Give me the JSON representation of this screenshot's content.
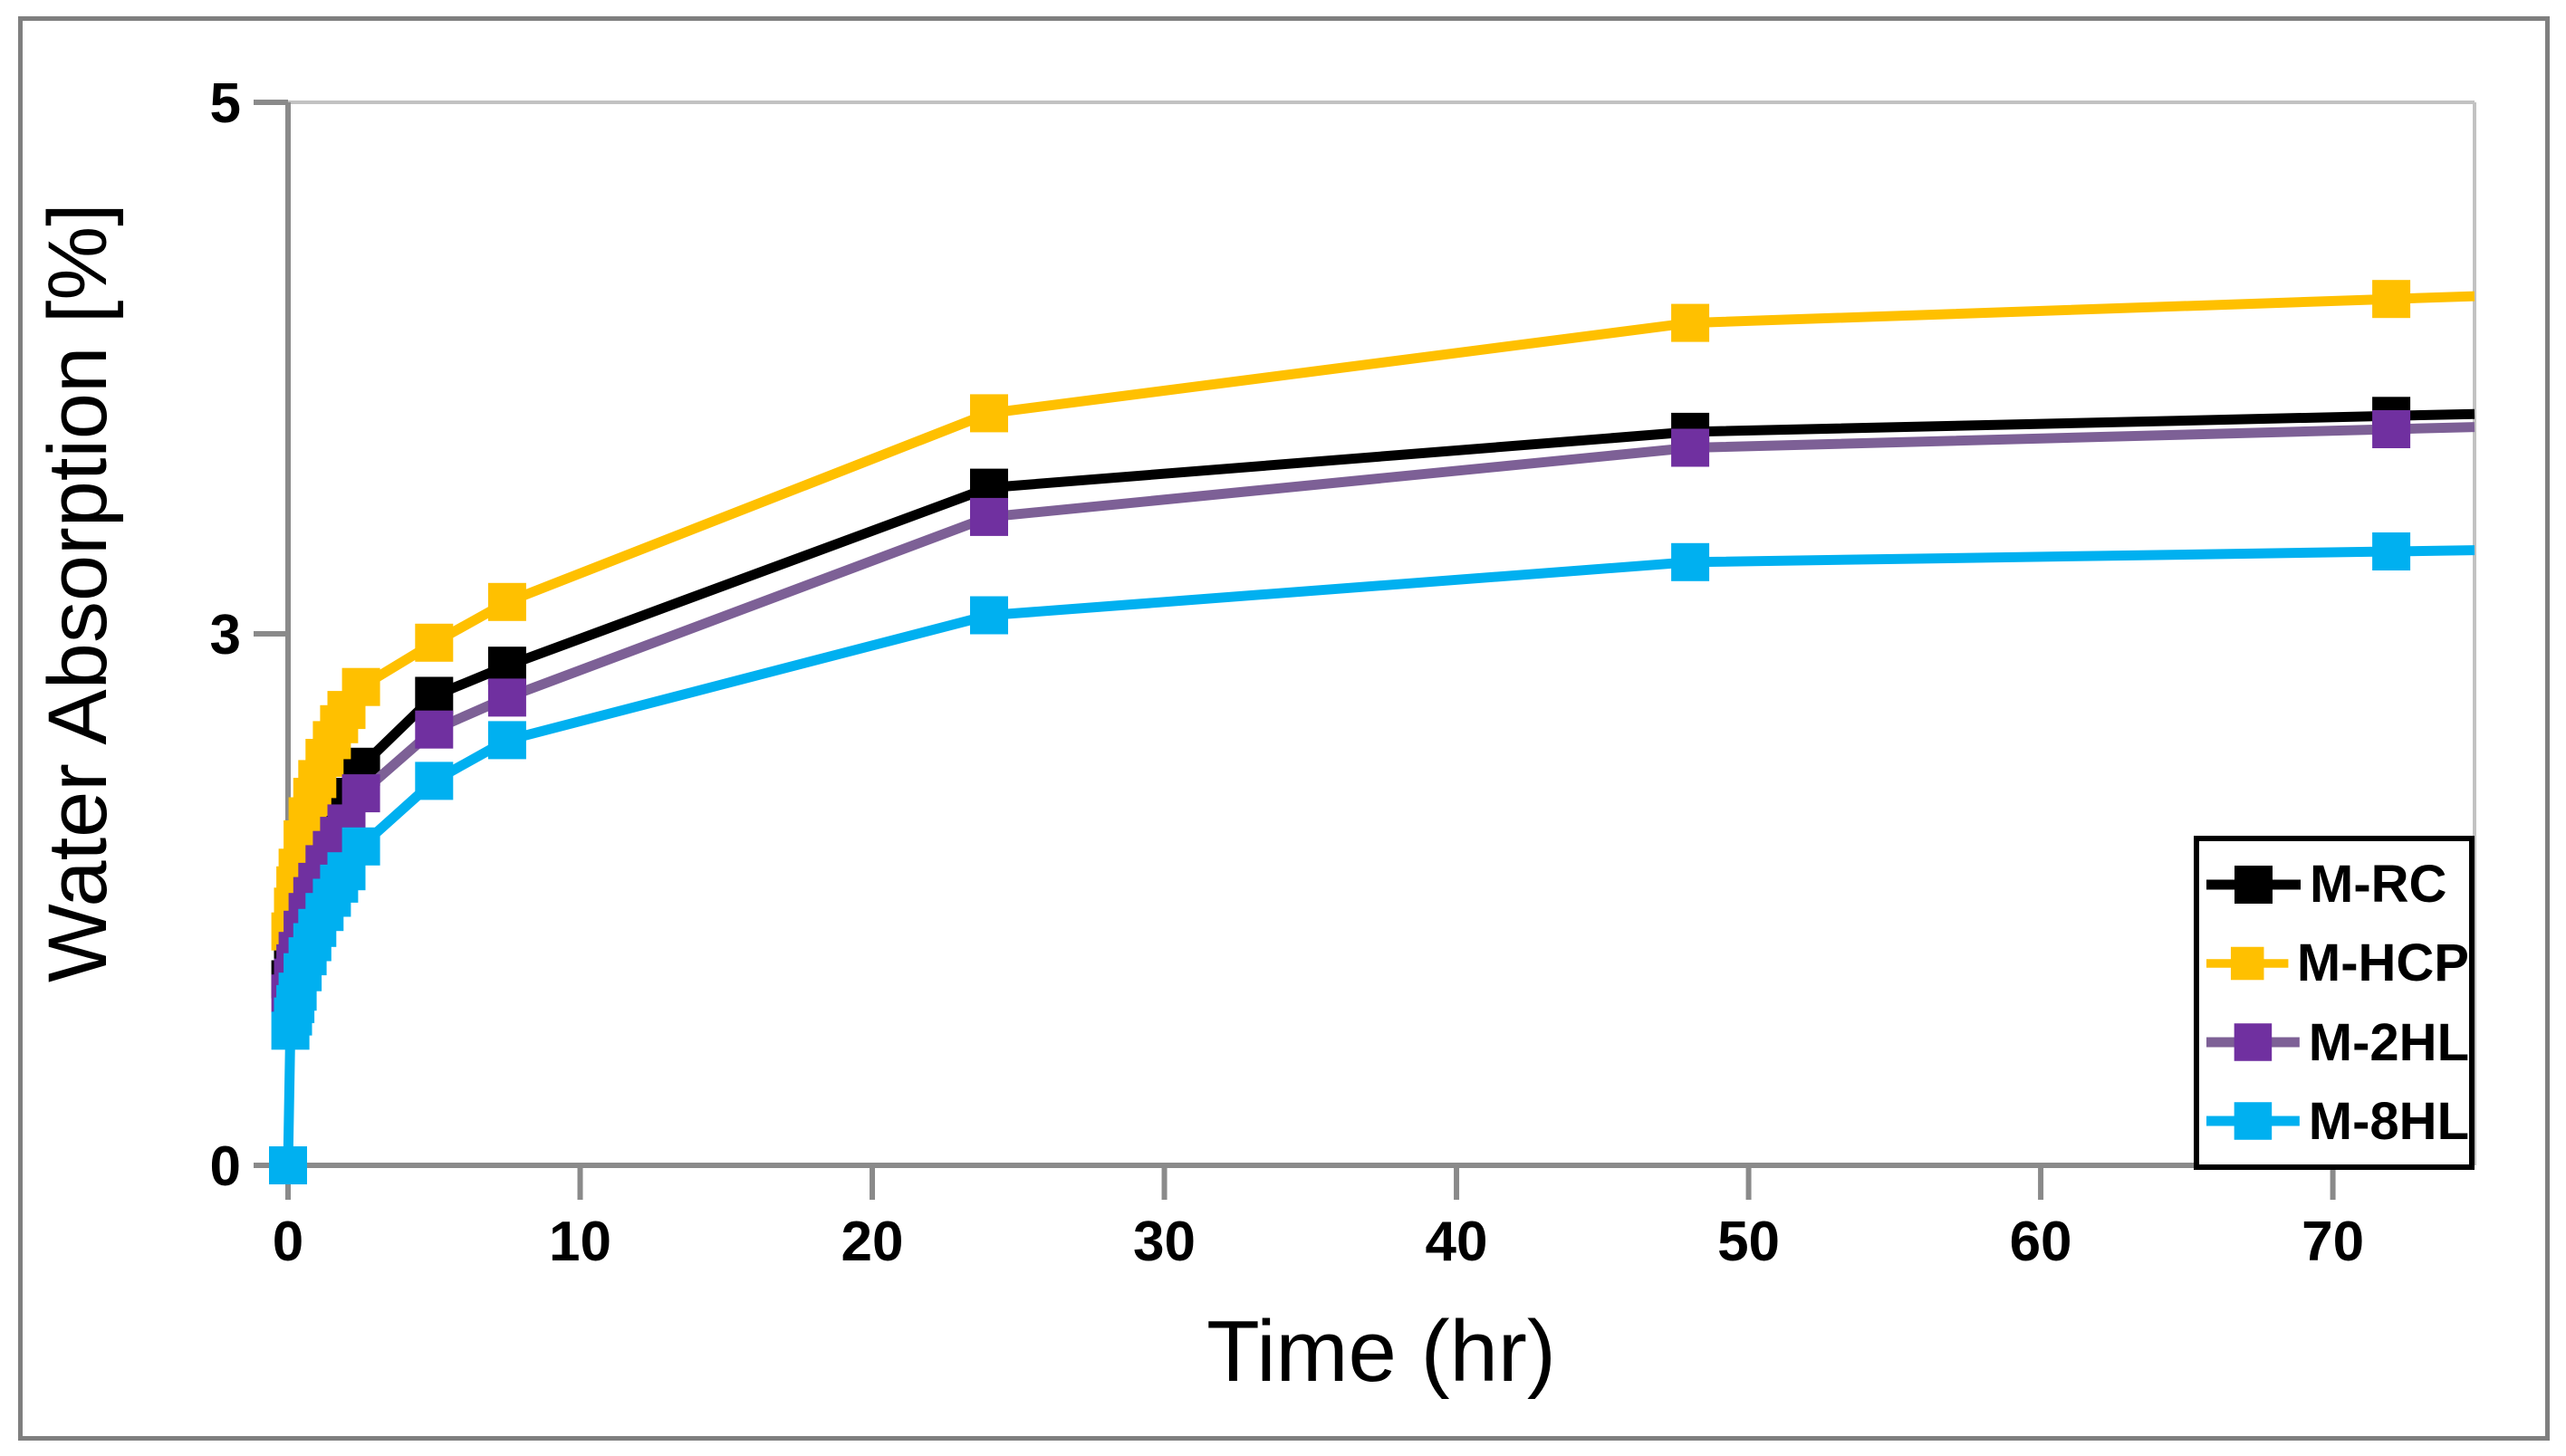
{
  "figure": {
    "background": "#FFFFFF",
    "frame_color": "#7F7F7F"
  },
  "chart_data": {
    "type": "line",
    "xlabel": "Time (hr)",
    "ylabel": "Water Absorption [%]",
    "xlim": [
      0,
      74.85
    ],
    "ylim": [
      0,
      5
    ],
    "x_ticks": [
      0,
      10,
      20,
      30,
      40,
      50,
      60,
      70
    ],
    "y_ticks": [
      0,
      3,
      5
    ],
    "grid": "off",
    "legend_position": "right-inside",
    "axis_color": "#8A8A8A",
    "plot_border_color": "#C2C2C2",
    "series": [
      {
        "name": "M-RC",
        "line_color": "#000000",
        "marker_color": "#000000",
        "marker": "square",
        "x": [
          0.08,
          0.17,
          0.25,
          0.33,
          0.5,
          0.67,
          0.83,
          1.0,
          1.25,
          1.5,
          1.75,
          2.0,
          2.5,
          5,
          7.5,
          24,
          48,
          72
        ],
        "y": [
          1.05,
          1.15,
          1.24,
          1.32,
          1.45,
          1.56,
          1.65,
          1.74,
          1.84,
          1.93,
          2.01,
          2.08,
          2.25,
          2.65,
          2.82,
          3.55,
          3.76,
          3.82
        ]
      },
      {
        "name": "M-HCP",
        "line_color": "#FFC000",
        "marker_color": "#FFC000",
        "marker": "square",
        "x": [
          0.08,
          0.17,
          0.25,
          0.33,
          0.5,
          0.67,
          0.83,
          1.0,
          1.25,
          1.5,
          1.75,
          2.0,
          2.5,
          5,
          7.5,
          24,
          48,
          72
        ],
        "y": [
          1.32,
          1.46,
          1.58,
          1.68,
          1.84,
          1.97,
          2.08,
          2.18,
          2.3,
          2.4,
          2.49,
          2.57,
          2.7,
          2.95,
          3.12,
          3.83,
          4.17,
          4.26
        ]
      },
      {
        "name": "M-2HL",
        "line_color": "#7D6096",
        "marker_color": "#7030A0",
        "marker": "square",
        "x": [
          0.08,
          0.17,
          0.25,
          0.33,
          0.5,
          0.67,
          0.83,
          1.0,
          1.25,
          1.5,
          1.75,
          2.0,
          2.5,
          5,
          7.5,
          24,
          48,
          72
        ],
        "y": [
          0.97,
          1.06,
          1.14,
          1.21,
          1.33,
          1.43,
          1.52,
          1.6,
          1.7,
          1.78,
          1.86,
          1.93,
          2.1,
          2.46,
          2.64,
          3.44,
          3.7,
          3.77
        ]
      },
      {
        "name": "M-8HL",
        "line_color": "#00B0F0",
        "marker_color": "#00B0F0",
        "marker": "square",
        "x": [
          0,
          0.08,
          0.17,
          0.25,
          0.33,
          0.5,
          0.67,
          0.83,
          1.0,
          1.25,
          1.5,
          1.75,
          2.0,
          2.5,
          5,
          7.5,
          24,
          48,
          72
        ],
        "y": [
          0,
          0.76,
          0.84,
          0.91,
          0.98,
          1.09,
          1.18,
          1.26,
          1.34,
          1.43,
          1.51,
          1.59,
          1.66,
          1.8,
          2.17,
          2.4,
          3.07,
          3.27,
          3.31
        ]
      }
    ]
  }
}
